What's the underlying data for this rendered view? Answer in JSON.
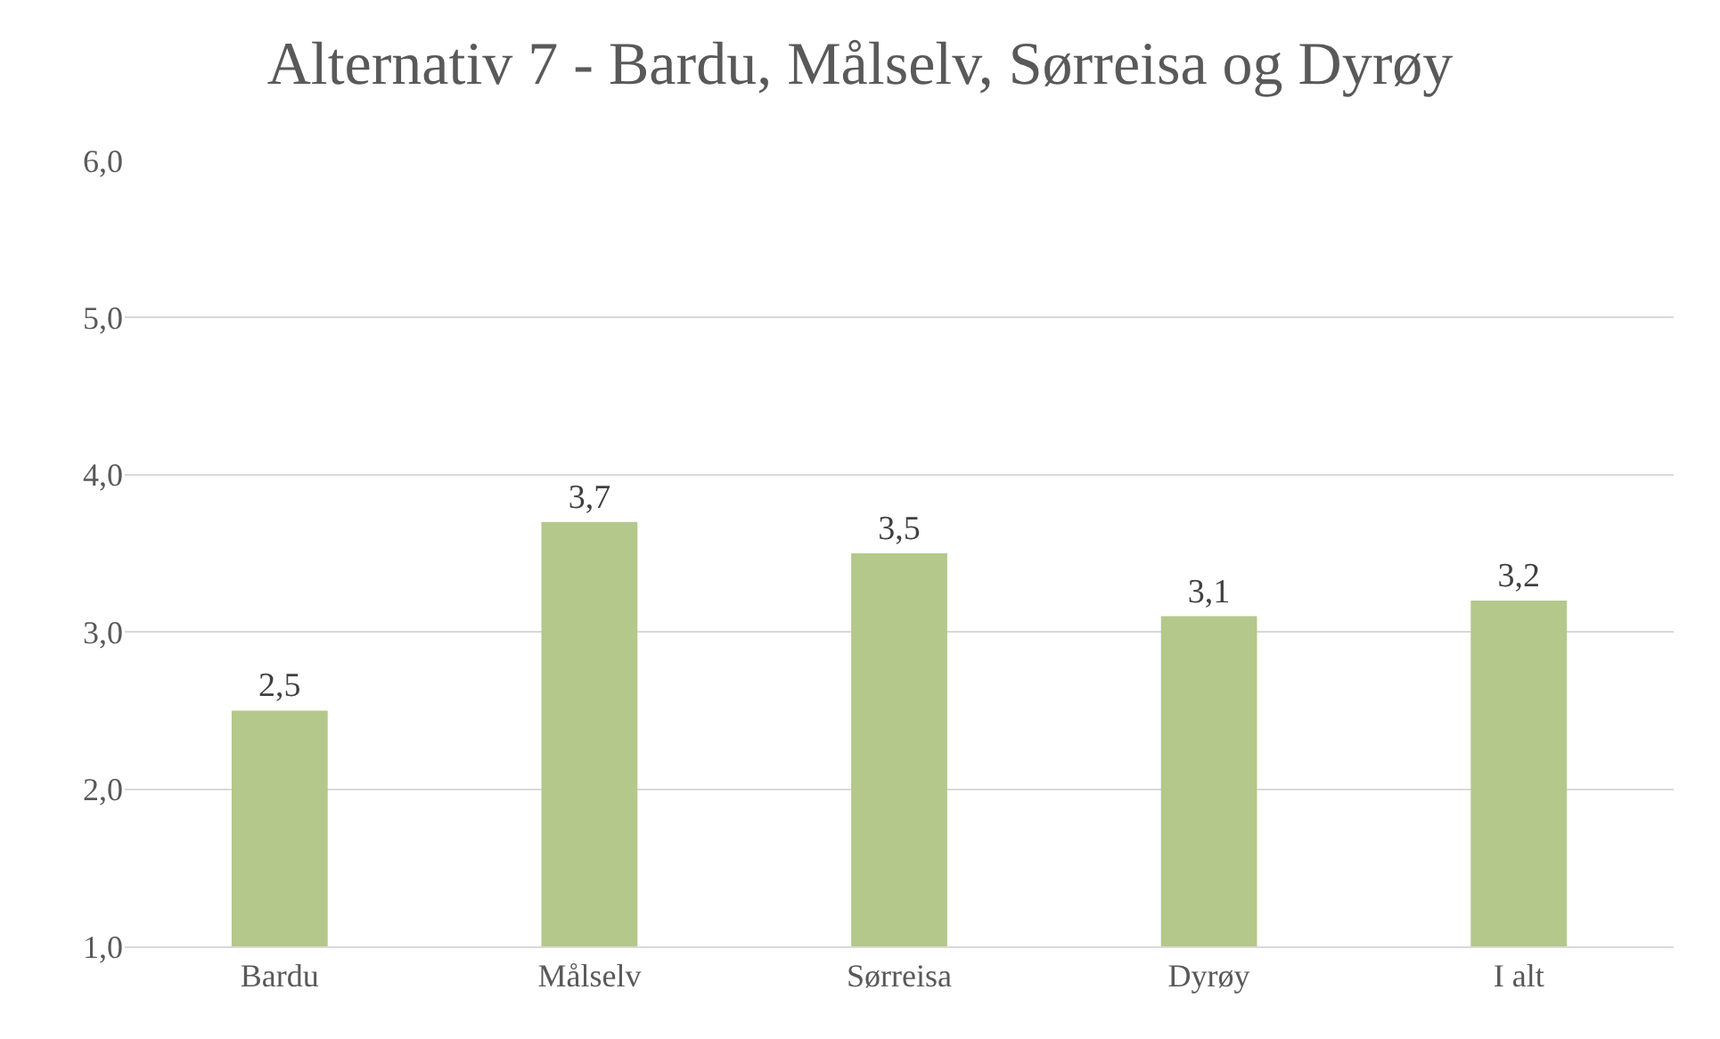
{
  "chart_data": {
    "type": "bar",
    "title": "Alternativ 7 - Bardu, Målselv, Sørreisa og Dyrøy",
    "categories": [
      "Bardu",
      "Målselv",
      "Sørreisa",
      "Dyrøy",
      "I alt"
    ],
    "values": [
      2.5,
      3.7,
      3.5,
      3.1,
      3.2
    ],
    "value_labels": [
      "2,5",
      "3,7",
      "3,5",
      "3,1",
      "3,2"
    ],
    "color": "#b3c88a",
    "ylim": [
      1,
      6
    ],
    "yticks": [
      {
        "value": 1,
        "label": "1,0"
      },
      {
        "value": 2,
        "label": "2,0"
      },
      {
        "value": 3,
        "label": "3,0"
      },
      {
        "value": 4,
        "label": "4,0"
      },
      {
        "value": 5,
        "label": "5,0"
      },
      {
        "value": 6,
        "label": "6,0"
      }
    ],
    "grid": "y",
    "legend": false
  }
}
